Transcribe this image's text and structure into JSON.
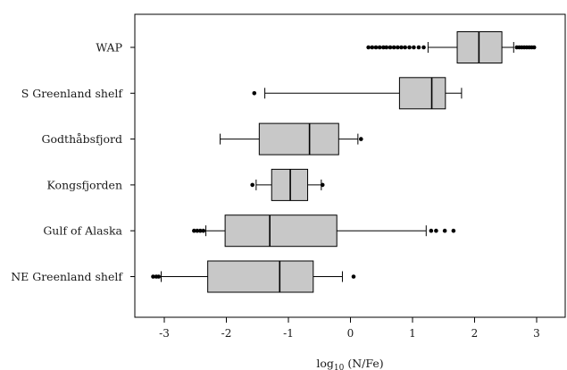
{
  "chart_data": {
    "type": "boxplot",
    "orientation": "horizontal",
    "xlabel_main": "log",
    "xlabel_sub": "10",
    "xlabel_tail": " (N/Fe)",
    "xlim": [
      -3.5,
      3.5
    ],
    "xticks": [
      -3,
      -2,
      -1,
      0,
      1,
      2,
      3
    ],
    "grid": false,
    "legend": "none",
    "box_fill": "#c8c8c8",
    "line_color": "#000000",
    "categories": [
      {
        "name": "WAP",
        "whisker_low": 1.25,
        "q1": 1.72,
        "median": 2.07,
        "q3": 2.44,
        "whisker_high": 2.63,
        "outliers": [
          0.29,
          0.35,
          0.41,
          0.47,
          0.53,
          0.58,
          0.64,
          0.7,
          0.76,
          0.82,
          0.88,
          0.95,
          1.02,
          1.1,
          1.18,
          2.68,
          2.72,
          2.76,
          2.8,
          2.84,
          2.88,
          2.92,
          2.96
        ]
      },
      {
        "name": "S Greenland shelf",
        "whisker_low": -1.38,
        "q1": 0.79,
        "median": 1.31,
        "q3": 1.53,
        "whisker_high": 1.79,
        "outliers": [
          -1.55
        ]
      },
      {
        "name": "Godthåbsfjord",
        "whisker_low": -2.1,
        "q1": -1.47,
        "median": -0.66,
        "q3": -0.19,
        "whisker_high": 0.12,
        "outliers": [
          0.17
        ]
      },
      {
        "name": "Kongsfjorden",
        "whisker_low": -1.52,
        "q1": -1.27,
        "median": -0.97,
        "q3": -0.69,
        "whisker_high": -0.47,
        "outliers": [
          -1.58,
          -0.45
        ]
      },
      {
        "name": "Gulf of Alaska",
        "whisker_low": -2.33,
        "q1": -2.02,
        "median": -1.3,
        "q3": -0.22,
        "whisker_high": 1.22,
        "outliers": [
          -2.52,
          -2.47,
          -2.42,
          -2.37,
          1.3,
          1.38,
          1.52,
          1.66
        ]
      },
      {
        "name": "NE Greenland shelf",
        "whisker_low": -3.05,
        "q1": -2.3,
        "median": -1.14,
        "q3": -0.6,
        "whisker_high": -0.13,
        "outliers": [
          -3.18,
          -3.13,
          -3.09,
          0.05
        ]
      }
    ]
  }
}
